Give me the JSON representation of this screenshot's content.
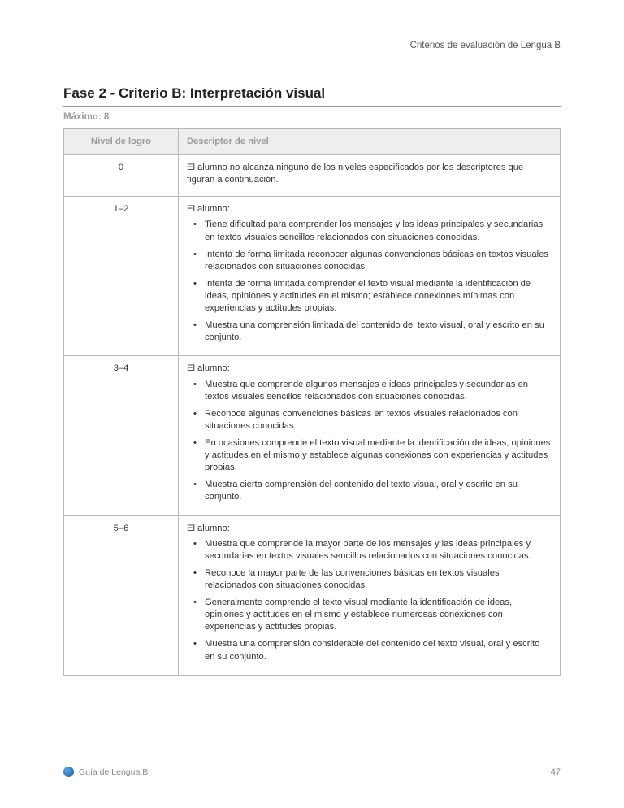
{
  "header": {
    "section": "Criterios de evaluación de Lengua B"
  },
  "title": "Fase 2 - Criterio B: Interpretación visual",
  "maximo": "Máximo: 8",
  "table": {
    "headers": {
      "level": "Nivel de logro",
      "descriptor": "Descriptor de nivel"
    },
    "colors": {
      "header_bg": "#eeeeee",
      "header_text": "#9a9a9a",
      "border": "#b8b8b8"
    },
    "rows": [
      {
        "level": "0",
        "intro": "El alumno no alcanza ninguno de los niveles especificados por los descriptores que figuran a continuación.",
        "bullets": []
      },
      {
        "level": "1–2",
        "intro": "El alumno:",
        "bullets": [
          "Tiene dificultad para comprender los mensajes y las ideas principales y secundarias en textos visuales sencillos relacionados con situaciones conocidas.",
          "Intenta de forma limitada reconocer algunas convenciones básicas en textos visuales relacionados con situaciones conocidas.",
          "Intenta de forma limitada comprender el texto visual mediante la identificación de ideas, opiniones y actitudes en el mismo; establece conexiones mínimas con experiencias y actitudes propias.",
          "Muestra una comprensión limitada del contenido del texto visual, oral y escrito en su conjunto."
        ]
      },
      {
        "level": "3–4",
        "intro": "El alumno:",
        "bullets": [
          "Muestra que comprende algunos mensajes e ideas principales y secundarias en textos visuales sencillos relacionados con situaciones conocidas.",
          "Reconoce algunas convenciones básicas en textos visuales relacionados con situaciones conocidas.",
          "En ocasiones comprende el texto visual mediante la identificación de ideas, opiniones y actitudes en el mismo y establece algunas conexiones con experiencias y actitudes propias.",
          "Muestra cierta comprensión del contenido del texto visual, oral y escrito en su conjunto."
        ]
      },
      {
        "level": "5–6",
        "intro": "El alumno:",
        "bullets": [
          "Muestra que comprende la mayor parte de los mensajes y las ideas principales y secundarias en textos visuales sencillos relacionados con situaciones conocidas.",
          "Reconoce la mayor parte de las convenciones básicas en textos visuales relacionados con situaciones conocidas.",
          "Generalmente comprende el texto visual mediante la identificación de ideas, opiniones y actitudes en el mismo y establece numerosas conexiones con experiencias y actitudes propias.",
          "Muestra una comprensión considerable del contenido del texto visual, oral y escrito en su conjunto."
        ]
      }
    ]
  },
  "footer": {
    "guide": "Guía de Lengua B",
    "page": "47"
  }
}
